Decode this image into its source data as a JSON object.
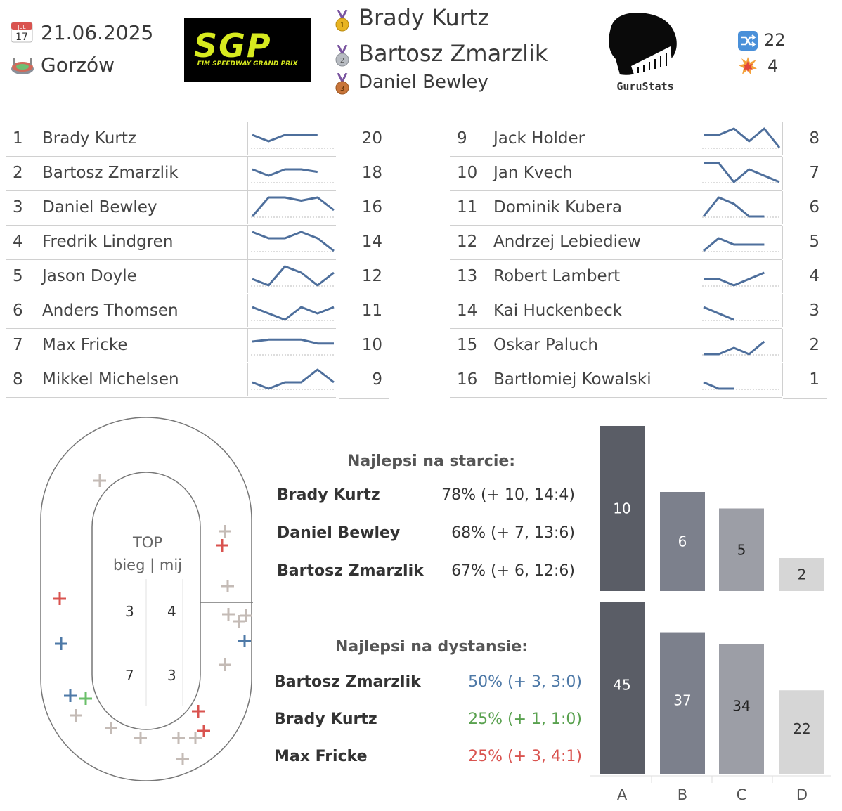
{
  "header": {
    "date": "21.06.2025",
    "venue": "Gorzów",
    "calendar_icon_label": "JUL 17",
    "logo_text": "SGP",
    "logo_subtext": "FIM SPEEDWAY GRAND PRIX",
    "brand_text": "GuruStats",
    "podium": [
      "Brady Kurtz",
      "Bartosz Zmarzlik",
      "Daniel Bewley"
    ],
    "stat_heats": "22",
    "stat_crashes": "4"
  },
  "standings": [
    {
      "rank": "1",
      "name": "Brady Kurtz",
      "points": "20",
      "trend": [
        2,
        1,
        2,
        2,
        2
      ]
    },
    {
      "rank": "2",
      "name": "Bartosz Zmarzlik",
      "points": "18",
      "trend": [
        2,
        1,
        2,
        2,
        1.6
      ]
    },
    {
      "rank": "3",
      "name": "Daniel Bewley",
      "points": "16",
      "trend": [
        0,
        3,
        3,
        2.5,
        3,
        1
      ]
    },
    {
      "rank": "4",
      "name": "Fredrik Lindgren",
      "points": "14",
      "trend": [
        3,
        2,
        2,
        3,
        2,
        0
      ]
    },
    {
      "rank": "5",
      "name": "Jason Doyle",
      "points": "12",
      "trend": [
        1,
        0,
        3,
        2,
        0,
        2
      ]
    },
    {
      "rank": "6",
      "name": "Anders Thomsen",
      "points": "11",
      "trend": [
        2,
        1,
        0,
        2,
        1,
        2
      ]
    },
    {
      "rank": "7",
      "name": "Max Fricke",
      "points": "10",
      "trend": [
        2,
        2.3,
        2.3,
        2.3,
        1.7,
        1.7
      ]
    },
    {
      "rank": "8",
      "name": "Mikkel Michelsen",
      "points": "9",
      "trend": [
        1,
        0,
        1,
        1,
        3,
        1
      ]
    },
    {
      "rank": "9",
      "name": "Jack Holder",
      "points": "8",
      "trend": [
        2,
        2,
        3,
        1,
        3,
        0
      ]
    },
    {
      "rank": "10",
      "name": "Jan Kvech",
      "points": "7",
      "trend": [
        3,
        3,
        0,
        2,
        1,
        0
      ]
    },
    {
      "rank": "11",
      "name": "Dominik Kubera",
      "points": "6",
      "trend": [
        0,
        3,
        2,
        0,
        0
      ]
    },
    {
      "rank": "12",
      "name": "Andrzej Lebiediew",
      "points": "5",
      "trend": [
        0,
        2,
        1,
        1,
        1
      ]
    },
    {
      "rank": "13",
      "name": "Robert Lambert",
      "points": "4",
      "trend": [
        1,
        1,
        0,
        1,
        2
      ]
    },
    {
      "rank": "14",
      "name": "Kai Huckenbeck",
      "points": "3",
      "trend": [
        2,
        1,
        0
      ]
    },
    {
      "rank": "15",
      "name": "Oskar Paluch",
      "points": "2",
      "trend": [
        0,
        0,
        1,
        0,
        2
      ]
    },
    {
      "rank": "16",
      "name": "Bartłomiej Kowalski",
      "points": "1",
      "trend": [
        1,
        0,
        0
      ]
    }
  ],
  "track": {
    "title_line1": "TOP",
    "title_line2": "bieg | mij",
    "top_left": "3",
    "top_right": "4",
    "bottom_left": "7",
    "bottom_right": "3",
    "marker_colors": {
      "grey": "#c4bbb6",
      "red": "#d9534f",
      "blue": "#4e79a7",
      "green": "#6abf69"
    }
  },
  "best_start": {
    "title": "Najlepsi na starcie:",
    "rows": [
      {
        "name": "Brady Kurtz",
        "value": "78% (+ 10, 14:4)"
      },
      {
        "name": "Daniel Bewley",
        "value": "68% (+ 7, 13:6)"
      },
      {
        "name": "Bartosz Zmarzlik",
        "value": "67% (+ 6, 12:6)"
      }
    ]
  },
  "best_distance": {
    "title": "Najlepsi na dystansie:",
    "rows": [
      {
        "name": "Bartosz Zmarzlik",
        "value": "50% (+ 3, 3:0)",
        "color": "#4e79a7"
      },
      {
        "name": "Brady Kurtz",
        "value": "25% (+ 1, 1:0)",
        "color": "#59a14f"
      },
      {
        "name": "Max Fricke",
        "value": "25% (+ 3, 4:1)",
        "color": "#d9534f"
      }
    ]
  },
  "chart_data": {
    "type": "bar",
    "categories": [
      "A",
      "B",
      "C",
      "D"
    ],
    "series": [
      {
        "values": [
          10,
          6,
          5,
          2
        ]
      },
      {
        "values": [
          45,
          37,
          34,
          22
        ]
      }
    ],
    "colors": [
      "#5a5d66",
      "#7c808c",
      "#9c9ea6",
      "#d6d6d6"
    ]
  }
}
